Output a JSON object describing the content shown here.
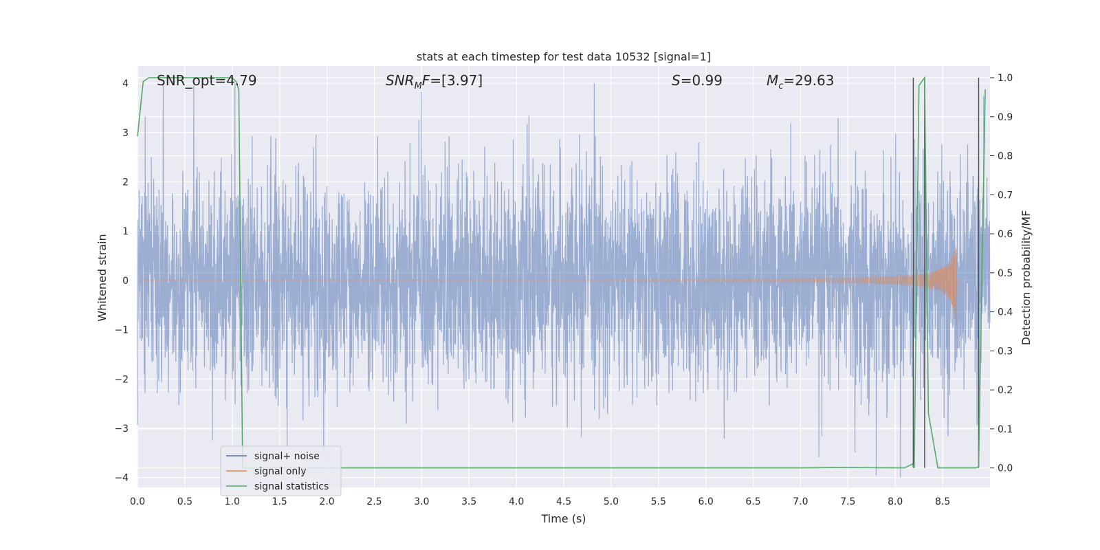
{
  "chart_data": {
    "type": "line",
    "title": "stats at each timestep for test data 10532 [signal=1]",
    "xlabel": "Time (s)",
    "ylabel_left": "Whitened strain",
    "ylabel_right": "Detection probability/MF",
    "xlim": [
      0.0,
      9.0
    ],
    "ylim_left": [
      -4.2,
      4.35
    ],
    "ylim_right": [
      -0.05,
      1.03
    ],
    "x_ticks": [
      "0.0",
      "0.5",
      "1.0",
      "1.5",
      "2.0",
      "2.5",
      "3.0",
      "3.5",
      "4.0",
      "4.5",
      "5.0",
      "5.5",
      "6.0",
      "6.5",
      "7.0",
      "7.5",
      "8.0",
      "8.5"
    ],
    "y_ticks_left": [
      "4",
      "3",
      "2",
      "1",
      "0",
      "−1",
      "−2",
      "−3",
      "−4"
    ],
    "y_ticks_right": [
      "1.0",
      "0.9",
      "0.8",
      "0.7",
      "0.6",
      "0.5",
      "0.4",
      "0.3",
      "0.2",
      "0.1",
      "0.0"
    ],
    "grid": true,
    "annotations": [
      {
        "label": "SNR_opt=4.79",
        "italic": false
      },
      {
        "label": "SNR",
        "sub": "M",
        "suffix": "F=[3.97]",
        "italic_part": "SNR",
        "italic_suffix": "F"
      },
      {
        "label": "S",
        "suffix": "=0.99",
        "italic_part": "S"
      },
      {
        "label": "M",
        "sub": "c",
        "suffix": "=29.63",
        "italic_part": "M"
      }
    ],
    "series": [
      {
        "name": "signal+ noise",
        "color": "#4c72b0",
        "opacity": 0.5,
        "axis": "left",
        "description": "white noise, sigma ~1, spikes to about +4 / -3.8"
      },
      {
        "name": "signal only",
        "color": "#dd8452",
        "opacity": 0.6,
        "axis": "left",
        "chirp": {
          "start": 5.0,
          "merger": 8.65,
          "peak_amplitude": 1.1
        }
      },
      {
        "name": "signal statistics",
        "color": "#55a868",
        "axis": "right",
        "x": [
          0.0,
          0.06,
          0.12,
          0.5,
          1.0,
          1.04,
          1.07,
          1.11,
          2.0,
          3.0,
          4.0,
          5.0,
          6.0,
          7.0,
          7.4,
          8.1,
          8.18,
          8.2,
          8.25,
          8.31,
          8.35,
          8.45,
          8.5,
          8.85,
          8.88,
          8.9,
          8.95
        ],
        "y": [
          0.85,
          0.99,
          1.0,
          1.0,
          1.0,
          0.99,
          0.97,
          0.0,
          0.0,
          0.0,
          0.0,
          0.0,
          0.0,
          0.0,
          0.001,
          0.0,
          0.01,
          0.0,
          0.98,
          1.0,
          0.14,
          0.0,
          0.0,
          0.0,
          0.003,
          0.3,
          0.97
        ]
      }
    ],
    "vlines": [
      8.19,
      8.31,
      8.88
    ],
    "vline_color": "#4d4d55",
    "legend_placement": "lower-left",
    "legend": [
      {
        "label": "signal+ noise",
        "color": "#4c72b0"
      },
      {
        "label": "signal only",
        "color": "#dd8452"
      },
      {
        "label": "signal statistics",
        "color": "#55a868"
      }
    ]
  }
}
